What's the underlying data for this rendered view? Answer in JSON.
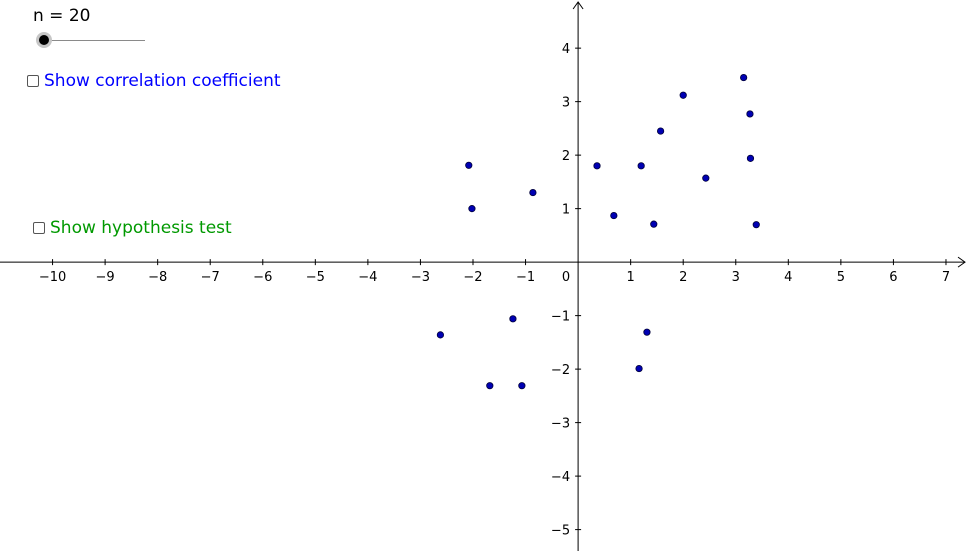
{
  "slider": {
    "label": "n = 20",
    "value": 20
  },
  "checkboxes": [
    {
      "label": "Show correlation coefficient",
      "checked": false,
      "color": "#0000ff"
    },
    {
      "label": "Show hypothesis test",
      "checked": false,
      "color": "#009900"
    }
  ],
  "colors": {
    "point_fill": "#0000b3",
    "point_stroke": "#00003a",
    "axis": "#000000"
  },
  "chart_data": {
    "type": "scatter",
    "xlim": [
      -11,
      7.4
    ],
    "ylim": [
      -5.4,
      4.9
    ],
    "grid": false,
    "x_ticks": [
      -10,
      -9,
      -8,
      -7,
      -6,
      -5,
      -4,
      -3,
      -2,
      -1,
      1,
      2,
      3,
      4,
      5,
      6,
      7
    ],
    "y_ticks": [
      -5,
      -4,
      -3,
      -2,
      -1,
      1,
      2,
      3,
      4
    ],
    "x_tick_labels": [
      "−10",
      "−9",
      "−8",
      "−7",
      "−6",
      "−5",
      "−4",
      "−3",
      "−2",
      "−1",
      "1",
      "2",
      "3",
      "4",
      "5",
      "6",
      "7"
    ],
    "y_tick_labels": [
      "−5",
      "−4",
      "−3",
      "−2",
      "−1",
      "1",
      "2",
      "3",
      "4"
    ],
    "origin_label": "0",
    "points": [
      {
        "x": -2.08,
        "y": 1.81
      },
      {
        "x": -2.02,
        "y": 1.0
      },
      {
        "x": -0.86,
        "y": 1.3
      },
      {
        "x": 0.36,
        "y": 1.8
      },
      {
        "x": 0.68,
        "y": 0.87
      },
      {
        "x": 1.2,
        "y": 1.8
      },
      {
        "x": 1.44,
        "y": 0.71
      },
      {
        "x": 1.57,
        "y": 2.45
      },
      {
        "x": 2.0,
        "y": 3.12
      },
      {
        "x": 2.43,
        "y": 1.57
      },
      {
        "x": 3.15,
        "y": 3.45
      },
      {
        "x": 3.27,
        "y": 2.77
      },
      {
        "x": 3.28,
        "y": 1.94
      },
      {
        "x": 3.39,
        "y": 0.7
      },
      {
        "x": -2.62,
        "y": -1.36
      },
      {
        "x": -1.24,
        "y": -1.06
      },
      {
        "x": -1.68,
        "y": -2.31
      },
      {
        "x": -1.07,
        "y": -2.31
      },
      {
        "x": 1.31,
        "y": -1.31
      },
      {
        "x": 1.16,
        "y": -1.99
      }
    ]
  }
}
